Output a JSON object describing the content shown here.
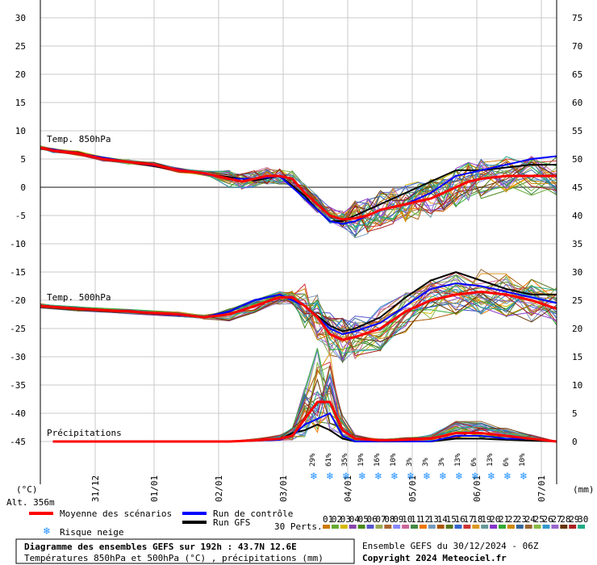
{
  "chart_data": {
    "type": "line",
    "title": "Diagramme des ensembles GEFS sur 192h : 43.7N 12.6E",
    "subtitle": "Températures 850hPa et 500hPa (°C) , précipitations (mm)",
    "run_info": "Ensemble GEFS du 30/12/2024 - 06Z",
    "copyright": "Copyright 2024 Meteociel.fr",
    "left_axis_unit": "(°C)",
    "right_axis_unit": "(mm)",
    "altitude": "Alt. 356m",
    "left_ticks": [
      "30",
      "25",
      "20",
      "15",
      "10",
      "5",
      "0",
      "-5",
      "-10",
      "-15",
      "-20",
      "-25",
      "-30",
      "-35",
      "-40",
      "-45"
    ],
    "right_ticks": [
      "75",
      "70",
      "65",
      "60",
      "55",
      "50",
      "45",
      "40",
      "35",
      "30",
      "25",
      "20",
      "15",
      "10",
      "5",
      "0"
    ],
    "ylim_left": [
      -45,
      30
    ],
    "ylim_right": [
      0,
      75
    ],
    "x_dates": [
      "31/12",
      "01/01",
      "02/01",
      "03/01",
      "04/01",
      "05/01",
      "06/01",
      "07/01"
    ],
    "x_hours_range": [
      6,
      192
    ],
    "panel_labels": [
      "Temp. 850hPa",
      "Temp. 500hPa",
      "Précipitations"
    ],
    "snow_risk": [
      "29%",
      "61%",
      "35%",
      "19%",
      "16%",
      "10%",
      "3%",
      "3%",
      "3%",
      "13%",
      "6%",
      "13%",
      "6%",
      "10%"
    ],
    "legend": {
      "mean": "Moyenne des scénarios",
      "control": "Run de contrôle",
      "gfs": "Run GFS",
      "snow": "Risque neige",
      "perts_label": "30 Perts.",
      "pert_numbers": [
        "01",
        "02",
        "03",
        "04",
        "05",
        "06",
        "07",
        "08",
        "09",
        "10",
        "11",
        "12",
        "13",
        "14",
        "15",
        "16",
        "17",
        "18",
        "19",
        "20",
        "21",
        "22",
        "23",
        "24",
        "25",
        "26",
        "27",
        "28",
        "29",
        "30"
      ]
    },
    "colors": {
      "mean": "#ff0000",
      "control": "#0000ff",
      "gfs": "#000000",
      "snow": "#1e90ff",
      "perturbations": [
        "#cc7a00",
        "#66aa33",
        "#d6b800",
        "#8844aa",
        "#4a8a1a",
        "#5555cc",
        "#99aa55",
        "#aa6633",
        "#8888ff",
        "#cc6699",
        "#448844",
        "#ee7700",
        "#7799bb",
        "#aa5500",
        "#557722",
        "#3366cc",
        "#cc3333",
        "#dd9922",
        "#669999",
        "#8833cc",
        "#33aa33",
        "#cc8800",
        "#336699",
        "#996633",
        "#88bb44",
        "#3399cc",
        "#9966cc",
        "#663300",
        "#aa2222",
        "#22aa88"
      ]
    },
    "t850_mean": [
      [
        6,
        7
      ],
      [
        12,
        6.5
      ],
      [
        24,
        6
      ],
      [
        36,
        5
      ],
      [
        48,
        4.5
      ],
      [
        60,
        4
      ],
      [
        72,
        3
      ],
      [
        84,
        2.5
      ],
      [
        96,
        1.5
      ],
      [
        102,
        1
      ],
      [
        108,
        1.5
      ],
      [
        114,
        2
      ],
      [
        120,
        2
      ],
      [
        126,
        1.5
      ],
      [
        132,
        -1
      ],
      [
        138,
        -3
      ],
      [
        144,
        -5
      ],
      [
        150,
        -5.7
      ],
      [
        156,
        -5.5
      ],
      [
        162,
        -5
      ],
      [
        168,
        -4
      ],
      [
        174,
        -3.5
      ],
      [
        180,
        -3
      ],
      [
        186,
        -2.5
      ],
      [
        192,
        -2
      ],
      [
        198,
        -1
      ],
      [
        204,
        0
      ],
      [
        210,
        1
      ],
      [
        216,
        1.5
      ],
      [
        228,
        2
      ],
      [
        240,
        2
      ],
      [
        252,
        2
      ]
    ],
    "t850_control": [
      [
        6,
        7
      ],
      [
        24,
        6
      ],
      [
        48,
        4.5
      ],
      [
        72,
        3.2
      ],
      [
        96,
        1.5
      ],
      [
        108,
        1.5
      ],
      [
        120,
        2
      ],
      [
        132,
        -2
      ],
      [
        138,
        -4
      ],
      [
        144,
        -6
      ],
      [
        150,
        -6.5
      ],
      [
        156,
        -6
      ],
      [
        162,
        -5
      ],
      [
        168,
        -4
      ],
      [
        180,
        -3
      ],
      [
        192,
        -1
      ],
      [
        204,
        2
      ],
      [
        216,
        3
      ],
      [
        228,
        4
      ],
      [
        240,
        5
      ],
      [
        252,
        5.5
      ]
    ],
    "t850_gfs": [
      [
        6,
        7
      ],
      [
        24,
        6
      ],
      [
        48,
        4.5
      ],
      [
        72,
        3
      ],
      [
        96,
        1.8
      ],
      [
        108,
        1.2
      ],
      [
        120,
        2
      ],
      [
        132,
        -1.5
      ],
      [
        138,
        -4
      ],
      [
        144,
        -6
      ],
      [
        150,
        -6
      ],
      [
        156,
        -5
      ],
      [
        168,
        -3
      ],
      [
        180,
        -1
      ],
      [
        192,
        1
      ],
      [
        204,
        3
      ],
      [
        216,
        3
      ],
      [
        228,
        3.5
      ],
      [
        240,
        4
      ],
      [
        252,
        4
      ]
    ],
    "t500_mean": [
      [
        6,
        -21
      ],
      [
        24,
        -21.5
      ],
      [
        48,
        -22
      ],
      [
        72,
        -22.5
      ],
      [
        84,
        -23
      ],
      [
        96,
        -22.5
      ],
      [
        108,
        -21
      ],
      [
        120,
        -19.5
      ],
      [
        126,
        -19.5
      ],
      [
        132,
        -21
      ],
      [
        138,
        -23
      ],
      [
        144,
        -26
      ],
      [
        150,
        -27
      ],
      [
        156,
        -26.5
      ],
      [
        168,
        -25
      ],
      [
        180,
        -22
      ],
      [
        192,
        -20
      ],
      [
        204,
        -19
      ],
      [
        216,
        -18.5
      ],
      [
        228,
        -19
      ],
      [
        240,
        -20
      ],
      [
        252,
        -21.5
      ]
    ],
    "t500_control": [
      [
        6,
        -21
      ],
      [
        48,
        -22
      ],
      [
        84,
        -23
      ],
      [
        96,
        -22
      ],
      [
        108,
        -20
      ],
      [
        120,
        -19
      ],
      [
        132,
        -21
      ],
      [
        144,
        -25
      ],
      [
        150,
        -26
      ],
      [
        156,
        -25.5
      ],
      [
        168,
        -24
      ],
      [
        180,
        -21
      ],
      [
        192,
        -18
      ],
      [
        204,
        -17
      ],
      [
        216,
        -17.5
      ],
      [
        228,
        -18.5
      ],
      [
        240,
        -19.5
      ],
      [
        252,
        -20.5
      ]
    ],
    "t500_gfs": [
      [
        6,
        -21
      ],
      [
        48,
        -22
      ],
      [
        84,
        -23
      ],
      [
        96,
        -22
      ],
      [
        108,
        -20
      ],
      [
        120,
        -19
      ],
      [
        132,
        -21
      ],
      [
        144,
        -24.5
      ],
      [
        150,
        -25.5
      ],
      [
        156,
        -25
      ],
      [
        168,
        -23
      ],
      [
        180,
        -19.5
      ],
      [
        192,
        -16.5
      ],
      [
        204,
        -15
      ],
      [
        216,
        -16.5
      ],
      [
        228,
        -18
      ],
      [
        240,
        -19
      ],
      [
        252,
        -19
      ]
    ],
    "precip_mean_mm": [
      [
        12,
        0
      ],
      [
        96,
        0
      ],
      [
        108,
        0.2
      ],
      [
        120,
        0.5
      ],
      [
        126,
        1
      ],
      [
        132,
        4
      ],
      [
        138,
        7
      ],
      [
        144,
        7
      ],
      [
        150,
        2
      ],
      [
        156,
        0.5
      ],
      [
        168,
        0.2
      ],
      [
        180,
        0.3
      ],
      [
        192,
        0.5
      ],
      [
        204,
        1.5
      ],
      [
        216,
        1.5
      ],
      [
        228,
        1
      ],
      [
        240,
        0.5
      ],
      [
        252,
        0
      ]
    ],
    "precip_control_mm": [
      [
        12,
        0
      ],
      [
        96,
        0
      ],
      [
        120,
        0.3
      ],
      [
        126,
        1
      ],
      [
        132,
        3
      ],
      [
        138,
        4
      ],
      [
        144,
        5
      ],
      [
        150,
        1
      ],
      [
        156,
        0
      ],
      [
        192,
        0
      ],
      [
        204,
        1
      ],
      [
        216,
        1
      ],
      [
        228,
        0.5
      ],
      [
        240,
        0.5
      ],
      [
        252,
        0
      ]
    ],
    "precip_gfs_mm": [
      [
        12,
        0
      ],
      [
        96,
        0
      ],
      [
        120,
        0.3
      ],
      [
        126,
        1.5
      ],
      [
        132,
        2
      ],
      [
        138,
        3
      ],
      [
        144,
        2
      ],
      [
        150,
        0.5
      ],
      [
        156,
        0
      ],
      [
        192,
        0
      ],
      [
        204,
        0.5
      ],
      [
        216,
        0.5
      ],
      [
        228,
        0.3
      ],
      [
        252,
        0
      ]
    ]
  }
}
